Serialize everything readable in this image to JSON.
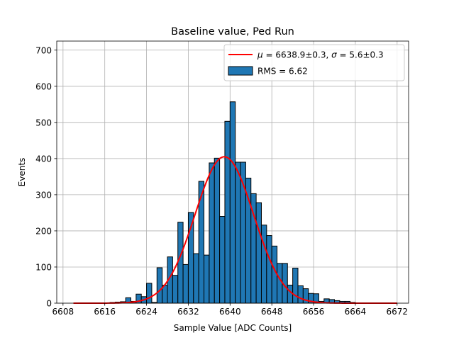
{
  "chart_data": {
    "type": "bar",
    "title": "Baseline value, Ped Run",
    "xlabel": "Sample Value [ADC Counts]",
    "ylabel": "Events",
    "xlim": [
      6606.8,
      6674.2
    ],
    "ylim": [
      0,
      725
    ],
    "xticks": [
      6608,
      6616,
      6624,
      6632,
      6640,
      6648,
      6656,
      6664,
      6672
    ],
    "yticks": [
      0,
      100,
      200,
      300,
      400,
      500,
      600,
      700
    ],
    "grid": true,
    "legend_position": "top-right",
    "bins": {
      "start": 6610,
      "width": 1,
      "values": [
        0,
        0,
        0,
        1,
        1,
        1,
        1,
        2,
        3,
        4,
        15,
        5,
        25,
        18,
        55,
        2,
        98,
        50,
        128,
        77,
        224,
        107,
        251,
        137,
        337,
        133,
        388,
        401,
        240,
        503,
        557,
        390,
        390,
        346,
        303,
        278,
        216,
        187,
        158,
        110,
        110,
        50,
        97,
        48,
        40,
        27,
        26,
        5,
        12,
        10,
        7,
        5,
        5,
        2,
        0,
        0,
        0,
        0,
        0,
        0,
        0,
        0,
        0
      ]
    },
    "fit": {
      "mu": 6638.9,
      "sigma": 5.6,
      "peak": 405,
      "x_range": [
        6610,
        6672
      ]
    },
    "legend": {
      "fit_label_mu": "μ",
      "fit_label_eq1": " = 6638.9±0.3, ",
      "fit_label_sigma": "σ",
      "fit_label_eq2": " = 5.6±0.3",
      "hist_label": "RMS = 6.62"
    },
    "colors": {
      "bar": "#1f77b4",
      "bar_edge": "#000000",
      "fit": "#ff0000",
      "grid": "#b0b0b0"
    }
  }
}
